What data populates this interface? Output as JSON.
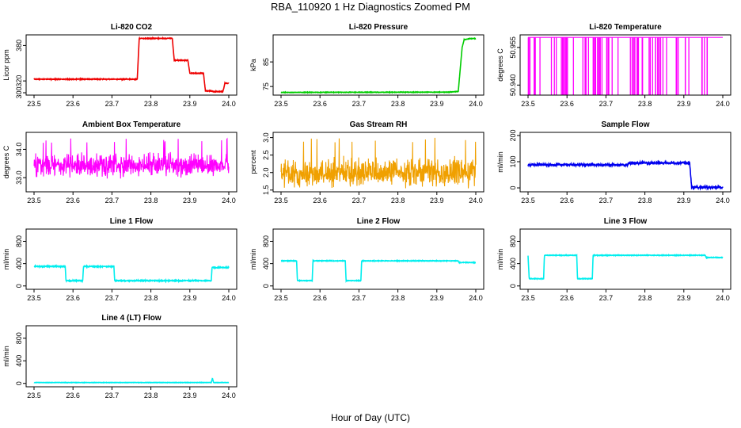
{
  "figure": {
    "title": "RBA_110920  1 Hz Diagnostics Zoomed PM",
    "xlabel": "Hour of Day (UTC)"
  },
  "chart_data": [
    {
      "id": "co2",
      "type": "line",
      "title": "Li-820 CO2",
      "ylabel": "Licor ppm",
      "color": "#ee0000",
      "xlim": [
        23.5,
        24.0
      ],
      "ylim": [
        296,
        398
      ],
      "xticks": [
        "23.5",
        "23.6",
        "23.7",
        "23.8",
        "23.9",
        "24.0"
      ],
      "yticks": [
        {
          "v": 300,
          "label": "300"
        },
        {
          "v": 320,
          "label": "320"
        },
        {
          "v": 380,
          "label": "380"
        }
      ],
      "noise": 0.6,
      "segments": [
        [
          23.5,
          323
        ],
        [
          23.765,
          323
        ],
        [
          23.77,
          392
        ],
        [
          23.855,
          392
        ],
        [
          23.86,
          355
        ],
        [
          23.895,
          355
        ],
        [
          23.9,
          333
        ],
        [
          23.935,
          333
        ],
        [
          23.94,
          303
        ],
        [
          23.955,
          303
        ],
        [
          23.96,
          302
        ],
        [
          23.985,
          302
        ],
        [
          23.99,
          316
        ],
        [
          24.0,
          316
        ]
      ]
    },
    {
      "id": "pressure",
      "type": "line",
      "title": "Li-820 Pressure",
      "ylabel": "kPa",
      "color": "#00cc00",
      "xlim": [
        23.5,
        24.0
      ],
      "ylim": [
        71.5,
        96
      ],
      "xticks": [
        "23.5",
        "23.6",
        "23.7",
        "23.8",
        "23.9",
        "24.0"
      ],
      "yticks": [
        {
          "v": 75,
          "label": "75"
        },
        {
          "v": 85,
          "label": "85"
        }
      ],
      "noise": 0.1,
      "segments": [
        [
          23.5,
          72.6
        ],
        [
          23.93,
          72.7
        ],
        [
          23.955,
          73.0
        ],
        [
          23.965,
          91.0
        ],
        [
          23.97,
          94.0
        ],
        [
          23.985,
          94.5
        ],
        [
          24.0,
          94.5
        ]
      ]
    },
    {
      "id": "licor_temp",
      "type": "spikes",
      "title": "Li-820 Temperature",
      "ylabel": "degrees C",
      "color": "#ff00ff",
      "xlim": [
        23.5,
        24.0
      ],
      "ylim": [
        50.936,
        50.96
      ],
      "xticks": [
        "23.5",
        "23.6",
        "23.7",
        "23.8",
        "23.9",
        "24.0"
      ],
      "yticks": [
        {
          "v": 50.94,
          "label": "50.940"
        },
        {
          "v": 50.955,
          "label": "50.955"
        }
      ],
      "base": 50.959,
      "low": 50.936,
      "spike_count": 80,
      "spike_xmax": 23.975
    },
    {
      "id": "ambient_temp",
      "type": "noise",
      "title": "Ambient Box Temperature",
      "ylabel": "degrees C",
      "color": "#ff00ff",
      "xlim": [
        23.5,
        24.0
      ],
      "ylim": [
        32.5,
        34.6
      ],
      "xticks": [
        "23.5",
        "23.6",
        "23.7",
        "23.8",
        "23.9",
        "24.0"
      ],
      "yticks": [
        {
          "v": 33.0,
          "label": "33.0"
        },
        {
          "v": 34.0,
          "label": "34.0"
        }
      ],
      "mean": 33.45,
      "amp": 0.35,
      "peak": 34.4
    },
    {
      "id": "gas_rh",
      "type": "noise",
      "title": "Gas Stream RH",
      "ylabel": "percent",
      "color": "#f0a000",
      "xlim": [
        23.5,
        24.0
      ],
      "ylim": [
        1.45,
        3.15
      ],
      "xticks": [
        "23.5",
        "23.6",
        "23.7",
        "23.8",
        "23.9",
        "24.0"
      ],
      "yticks": [
        {
          "v": 1.5,
          "label": "1.5"
        },
        {
          "v": 2.0,
          "label": "2.0"
        },
        {
          "v": 2.5,
          "label": "2.5"
        },
        {
          "v": 3.0,
          "label": "3.0"
        }
      ],
      "mean": 2.0,
      "amp": 0.35,
      "peak": 3.0
    },
    {
      "id": "sample_flow",
      "type": "line",
      "title": "Sample Flow",
      "ylabel": "ml/min",
      "color": "#0000ee",
      "xlim": [
        23.5,
        24.0
      ],
      "ylim": [
        -15,
        212
      ],
      "xticks": [
        "23.5",
        "23.6",
        "23.7",
        "23.8",
        "23.9",
        "24.0"
      ],
      "yticks": [
        {
          "v": 0,
          "label": "0"
        },
        {
          "v": 100,
          "label": "100"
        },
        {
          "v": 200,
          "label": "200"
        }
      ],
      "noise": 4,
      "segments": [
        [
          23.5,
          88
        ],
        [
          23.755,
          88
        ],
        [
          23.76,
          95
        ],
        [
          23.915,
          95
        ],
        [
          23.92,
          2
        ],
        [
          24.0,
          2
        ]
      ]
    },
    {
      "id": "line1",
      "type": "line",
      "title": "Line 1 Flow",
      "ylabel": "ml/min",
      "color": "#00eeee",
      "xlim": [
        23.5,
        24.0
      ],
      "ylim": [
        -60,
        1020
      ],
      "xticks": [
        "23.5",
        "23.6",
        "23.7",
        "23.8",
        "23.9",
        "24.0"
      ],
      "yticks": [
        {
          "v": 0,
          "label": "0"
        },
        {
          "v": 400,
          "label": "400"
        },
        {
          "v": 800,
          "label": "800"
        }
      ],
      "noise": 8,
      "segments": [
        [
          23.5,
          350
        ],
        [
          23.58,
          350
        ],
        [
          23.582,
          95
        ],
        [
          23.625,
          95
        ],
        [
          23.627,
          350
        ],
        [
          23.705,
          350
        ],
        [
          23.707,
          95
        ],
        [
          23.955,
          95
        ],
        [
          23.957,
          330
        ],
        [
          24.0,
          330
        ]
      ]
    },
    {
      "id": "line2",
      "type": "line",
      "title": "Line 2 Flow",
      "ylabel": "ml/min",
      "color": "#00eeee",
      "xlim": [
        23.5,
        24.0
      ],
      "ylim": [
        -60,
        1020
      ],
      "xticks": [
        "23.5",
        "23.6",
        "23.7",
        "23.8",
        "23.9",
        "24.0"
      ],
      "yticks": [
        {
          "v": 0,
          "label": "0"
        },
        {
          "v": 400,
          "label": "400"
        },
        {
          "v": 800,
          "label": "800"
        }
      ],
      "noise": 5,
      "segments": [
        [
          23.5,
          450
        ],
        [
          23.54,
          450
        ],
        [
          23.542,
          95
        ],
        [
          23.58,
          95
        ],
        [
          23.582,
          450
        ],
        [
          23.665,
          450
        ],
        [
          23.667,
          95
        ],
        [
          23.705,
          95
        ],
        [
          23.707,
          450
        ],
        [
          23.955,
          450
        ],
        [
          23.957,
          420
        ],
        [
          24.0,
          420
        ]
      ]
    },
    {
      "id": "line3",
      "type": "line",
      "title": "Line 3 Flow",
      "ylabel": "ml/min",
      "color": "#00eeee",
      "xlim": [
        23.5,
        24.0
      ],
      "ylim": [
        -60,
        1020
      ],
      "xticks": [
        "23.5",
        "23.6",
        "23.7",
        "23.8",
        "23.9",
        "24.0"
      ],
      "yticks": [
        {
          "v": 0,
          "label": "0"
        },
        {
          "v": 400,
          "label": "400"
        },
        {
          "v": 800,
          "label": "800"
        }
      ],
      "noise": 5,
      "segments": [
        [
          23.5,
          540
        ],
        [
          23.503,
          130
        ],
        [
          23.54,
          130
        ],
        [
          23.542,
          550
        ],
        [
          23.625,
          550
        ],
        [
          23.627,
          130
        ],
        [
          23.665,
          130
        ],
        [
          23.667,
          550
        ],
        [
          23.955,
          550
        ],
        [
          23.957,
          510
        ],
        [
          24.0,
          510
        ]
      ]
    },
    {
      "id": "line4",
      "type": "line",
      "title": "Line 4 (LT) Flow",
      "ylabel": "ml/min",
      "color": "#00eeee",
      "xlim": [
        23.5,
        24.0
      ],
      "ylim": [
        -60,
        1020
      ],
      "xticks": [
        "23.5",
        "23.6",
        "23.7",
        "23.8",
        "23.9",
        "24.0"
      ],
      "yticks": [
        {
          "v": 0,
          "label": "0"
        },
        {
          "v": 400,
          "label": "400"
        },
        {
          "v": 800,
          "label": "800"
        }
      ],
      "noise": 3,
      "segments": [
        [
          23.5,
          15
        ],
        [
          23.955,
          15
        ],
        [
          23.958,
          90
        ],
        [
          23.961,
          15
        ],
        [
          24.0,
          15
        ]
      ]
    }
  ]
}
